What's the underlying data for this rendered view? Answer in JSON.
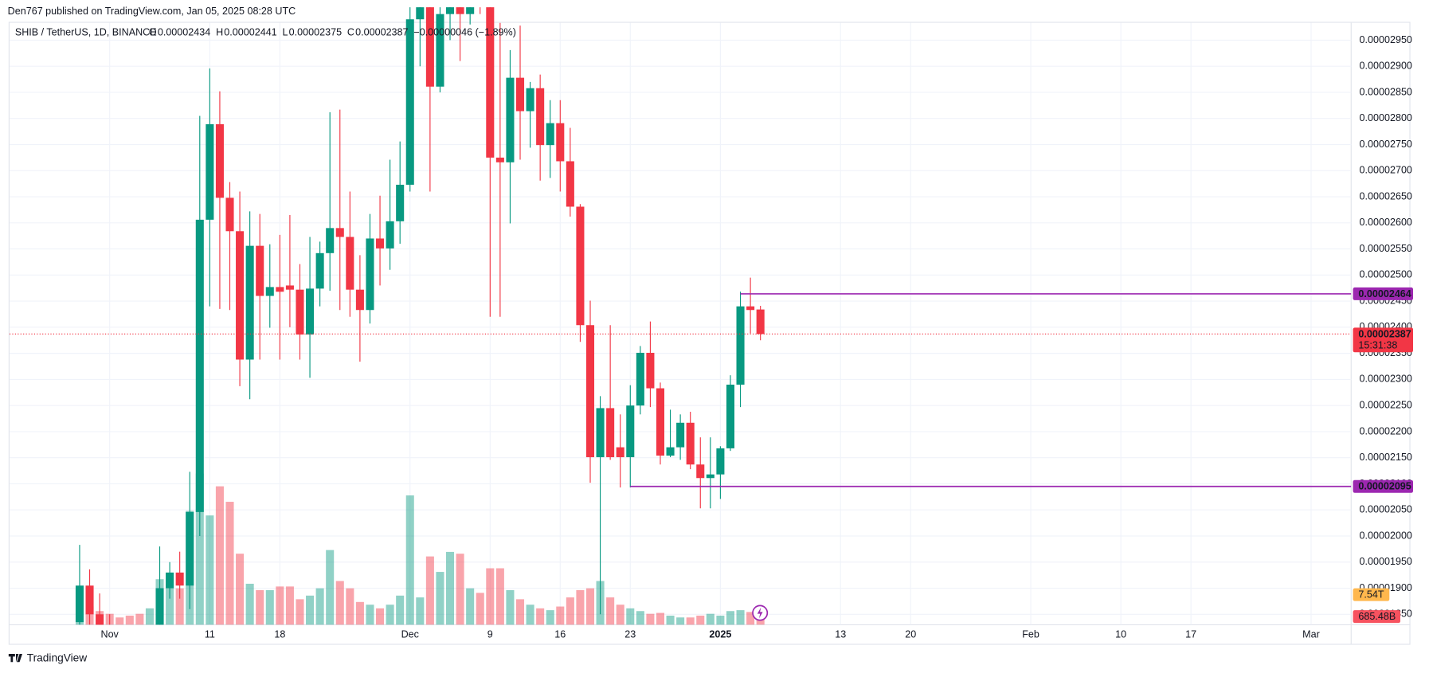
{
  "header": {
    "published": "Den767 published on TradingView.com, Jan 05, 2025 08:28 UTC",
    "symbol": "SHIB / TetherUS, 1D, BINANCE",
    "ohlc_letters": [
      "O",
      "H",
      "L",
      "C"
    ],
    "change": "−0.00000046 (−1.89%)"
  },
  "chart_data": {
    "type": "candlestick",
    "x": [
      "2024-10-29",
      "2024-10-30",
      "2024-10-31",
      "2024-11-01",
      "2024-11-02",
      "2024-11-03",
      "2024-11-04",
      "2024-11-05",
      "2024-11-06",
      "2024-11-07",
      "2024-11-08",
      "2024-11-09",
      "2024-11-10",
      "2024-11-11",
      "2024-11-12",
      "2024-11-13",
      "2024-11-14",
      "2024-11-15",
      "2024-11-16",
      "2024-11-17",
      "2024-11-18",
      "2024-11-19",
      "2024-11-20",
      "2024-11-21",
      "2024-11-22",
      "2024-11-23",
      "2024-11-24",
      "2024-11-25",
      "2024-11-26",
      "2024-11-27",
      "2024-11-28",
      "2024-11-29",
      "2024-11-30",
      "2024-12-01",
      "2024-12-02",
      "2024-12-03",
      "2024-12-04",
      "2024-12-05",
      "2024-12-06",
      "2024-12-07",
      "2024-12-08",
      "2024-12-09",
      "2024-12-10",
      "2024-12-11",
      "2024-12-12",
      "2024-12-13",
      "2024-12-14",
      "2024-12-15",
      "2024-12-16",
      "2024-12-17",
      "2024-12-18",
      "2024-12-19",
      "2024-12-20",
      "2024-12-21",
      "2024-12-22",
      "2024-12-23",
      "2024-12-24",
      "2024-12-25",
      "2024-12-26",
      "2024-12-27",
      "2024-12-28",
      "2024-12-29",
      "2024-12-30",
      "2024-12-31",
      "2025-01-01",
      "2025-01-02",
      "2025-01-03",
      "2025-01-04",
      "2025-01-05"
    ],
    "open": [
      1.835e-05,
      1.905e-05,
      1.85e-05,
      1.81e-05,
      1.8e-05,
      1.78e-05,
      1.74e-05,
      1.72e-05,
      1.78e-05,
      1.9e-05,
      1.93e-05,
      1.905e-05,
      2.046e-05,
      2.606e-05,
      2.789e-05,
      2.648e-05,
      2.584e-05,
      2.338e-05,
      2.556e-05,
      2.46e-05,
      2.477e-05,
      2.48e-05,
      2.472e-05,
      2.386e-05,
      2.474e-05,
      2.542e-05,
      2.59e-05,
      2.573e-05,
      2.472e-05,
      2.433e-05,
      2.57e-05,
      2.551e-05,
      2.603e-05,
      2.673e-05,
      2.99e-05,
      3.04e-05,
      2.861e-05,
      3e-05,
      3.05e-05,
      3e-05,
      3.1e-05,
      3.05e-05,
      2.725e-05,
      2.716e-05,
      2.878e-05,
      2.814e-05,
      2.858e-05,
      2.749e-05,
      2.791e-05,
      2.718e-05,
      2.631e-05,
      2.404e-05,
      2.151e-05,
      2.245e-05,
      2.17e-05,
      2.151e-05,
      2.25e-05,
      2.351e-05,
      2.283e-05,
      2.154e-05,
      2.17e-05,
      2.217e-05,
      2.137e-05,
      2.111e-05,
      2.118e-05,
      2.168e-05,
      2.29e-05,
      2.44e-05,
      2.434e-05
    ],
    "high": [
      1.983e-05,
      1.936e-05,
      1.89e-05,
      1.85e-05,
      1.82e-05,
      1.8e-05,
      1.78e-05,
      1.8e-05,
      1.98e-05,
      1.95e-05,
      1.97e-05,
      2.123e-05,
      2.805e-05,
      2.896e-05,
      2.852e-05,
      2.678e-05,
      2.66e-05,
      2.622e-05,
      2.617e-05,
      2.559e-05,
      2.577e-05,
      2.615e-05,
      2.521e-05,
      2.573e-05,
      2.564e-05,
      2.812e-05,
      2.817e-05,
      2.66e-05,
      2.538e-05,
      2.617e-05,
      2.652e-05,
      2.721e-05,
      2.756e-05,
      3.05e-05,
      3.1e-05,
      3.08e-05,
      3.05e-05,
      3.15e-05,
      3.1e-05,
      3.15e-05,
      3.15e-05,
      3.1e-05,
      2.983e-05,
      2.931e-05,
      2.978e-05,
      2.87e-05,
      2.884e-05,
      2.835e-05,
      2.835e-05,
      2.782e-05,
      2.636e-05,
      2.451e-05,
      2.268e-05,
      2.404e-05,
      2.233e-05,
      2.289e-05,
      2.364e-05,
      2.411e-05,
      2.294e-05,
      2.242e-05,
      2.233e-05,
      2.238e-05,
      2.189e-05,
      2.189e-05,
      2.172e-05,
      2.308e-05,
      2.468e-05,
      2.495e-05,
      2.441e-05
    ],
    "low": [
      1.83e-05,
      1.83e-05,
      1.8e-05,
      1.78e-05,
      1.76e-05,
      1.7e-05,
      1.69e-05,
      1.71e-05,
      1.77e-05,
      1.88e-05,
      1.88e-05,
      1.86e-05,
      2e-05,
      2.44e-05,
      2.435e-05,
      2.433e-05,
      2.287e-05,
      2.262e-05,
      2.338e-05,
      2.399e-05,
      2.338e-05,
      2.4e-05,
      2.338e-05,
      2.303e-05,
      2.44e-05,
      2.47e-05,
      2.433e-05,
      2.42e-05,
      2.334e-05,
      2.407e-05,
      2.48e-05,
      2.51e-05,
      2.56e-05,
      2.66e-05,
      2.9e-05,
      2.66e-05,
      2.85e-05,
      2.95e-05,
      2.91e-05,
      2.98e-05,
      3e-05,
      2.42e-05,
      2.42e-05,
      2.599e-05,
      2.721e-05,
      2.744e-05,
      2.681e-05,
      2.686e-05,
      2.66e-05,
      2.612e-05,
      2.372e-05,
      2.102e-05,
      1.85e-05,
      2.146e-05,
      2.093e-05,
      2.093e-05,
      2.233e-05,
      2.247e-05,
      2.137e-05,
      2.151e-05,
      2.146e-05,
      2.128e-05,
      2.053e-05,
      2.053e-05,
      2.071e-05,
      2.163e-05,
      2.247e-05,
      2.388e-05,
      2.375e-05
    ],
    "close": [
      1.905e-05,
      1.85e-05,
      1.81e-05,
      1.8e-05,
      1.78e-05,
      1.74e-05,
      1.72e-05,
      1.78e-05,
      1.9e-05,
      1.93e-05,
      1.905e-05,
      2.046e-05,
      2.606e-05,
      2.789e-05,
      2.648e-05,
      2.584e-05,
      2.338e-05,
      2.556e-05,
      2.46e-05,
      2.477e-05,
      2.468e-05,
      2.472e-05,
      2.386e-05,
      2.474e-05,
      2.542e-05,
      2.59e-05,
      2.573e-05,
      2.472e-05,
      2.433e-05,
      2.57e-05,
      2.551e-05,
      2.603e-05,
      2.673e-05,
      2.99e-05,
      3.04e-05,
      2.861e-05,
      3e-05,
      3.05e-05,
      3e-05,
      3.1e-05,
      3.05e-05,
      2.725e-05,
      2.716e-05,
      2.878e-05,
      2.814e-05,
      2.858e-05,
      2.749e-05,
      2.791e-05,
      2.718e-05,
      2.631e-05,
      2.404e-05,
      2.151e-05,
      2.245e-05,
      2.151e-05,
      2.151e-05,
      2.25e-05,
      2.351e-05,
      2.283e-05,
      2.154e-05,
      2.17e-05,
      2.217e-05,
      2.137e-05,
      2.111e-05,
      2.118e-05,
      2.168e-05,
      2.29e-05,
      2.44e-05,
      2.433e-05,
      2.387e-05
    ],
    "volume": [
      3440000000000.0,
      1720000000000.0,
      1290000000000.0,
      1032000000000.0,
      688000000000.0,
      860000000000.0,
      1032000000000.0,
      1548000000000.0,
      4300000000000.0,
      3870000000000.0,
      3440000000000.0,
      10750000000000.0,
      14276000000000.0,
      10320000000000.0,
      13072000000000.0,
      11610000000000.0,
      6708000000000.0,
      3870000000000.0,
      3268000000000.0,
      3268000000000.0,
      3612000000000.0,
      3612000000000.0,
      2408000000000.0,
      2752000000000.0,
      3440000000000.0,
      7052000000000.0,
      4128000000000.0,
      3440000000000.0,
      2150000000000.0,
      1892000000000.0,
      1548000000000.0,
      1892000000000.0,
      2752000000000.0,
      12212000000000.0,
      2580000000000.0,
      6450000000000.0,
      4988000000000.0,
      6880000000000.0,
      6708000000000.0,
      3440000000000.0,
      3010000000000.0,
      5332000000000.0,
      5332000000000.0,
      3268000000000.0,
      2408000000000.0,
      1892000000000.0,
      1548000000000.0,
      1376000000000.0,
      1720000000000.0,
      2580000000000.0,
      3268000000000.0,
      3440000000000.0,
      4128000000000.0,
      2580000000000.0,
      1892000000000.0,
      1548000000000.0,
      1290000000000.0,
      1032000000000.0,
      1118000000000.0,
      860000000000.0,
      688000000000.0,
      688000000000.0,
      860000000000.0,
      1032000000000.0,
      860000000000.0,
      1290000000000.0,
      1376000000000.0,
      1204000000000.0,
      685480000000
    ],
    "last_volume_label": "685.48B",
    "volume_ma": {
      "value": 7540000000000,
      "label": "7.54T"
    },
    "colors": {
      "up": "#089981",
      "down": "#f23645",
      "level": "#9c27b0"
    },
    "countdown": "15:31:38",
    "levels": [
      {
        "value": 2.464e-05,
        "start": "2025-01-03"
      },
      {
        "value": 2.095e-05,
        "start": "2024-12-23"
      }
    ],
    "ylim": [
      1.83e-05,
      3.013e-05
    ],
    "yticks": [
      {
        "value": 1.85e-05,
        "label": "0.00001850"
      },
      {
        "value": 1.9e-05,
        "label": "0.00001900"
      },
      {
        "value": 1.95e-05,
        "label": "0.00001950"
      },
      {
        "value": 2e-05,
        "label": "0.00002000"
      },
      {
        "value": 2.05e-05,
        "label": "0.00002050"
      },
      {
        "value": 2.1e-05,
        "label": "0.00002100"
      },
      {
        "value": 2.15e-05,
        "label": "0.00002150"
      },
      {
        "value": 2.2e-05,
        "label": "0.00002200"
      },
      {
        "value": 2.25e-05,
        "label": "0.00002250"
      },
      {
        "value": 2.3e-05,
        "label": "0.00002300"
      },
      {
        "value": 2.35e-05,
        "label": "0.00002350"
      },
      {
        "value": 2.4e-05,
        "label": "0.00002400"
      },
      {
        "value": 2.45e-05,
        "label": "0.00002450"
      },
      {
        "value": 2.5e-05,
        "label": "0.00002500"
      },
      {
        "value": 2.55e-05,
        "label": "0.00002550"
      },
      {
        "value": 2.6e-05,
        "label": "0.00002600"
      },
      {
        "value": 2.65e-05,
        "label": "0.00002650"
      },
      {
        "value": 2.7e-05,
        "label": "0.00002700"
      },
      {
        "value": 2.75e-05,
        "label": "0.00002750"
      },
      {
        "value": 2.8e-05,
        "label": "0.00002800"
      },
      {
        "value": 2.85e-05,
        "label": "0.00002850"
      },
      {
        "value": 2.9e-05,
        "label": "0.00002900"
      },
      {
        "value": 2.95e-05,
        "label": "0.00002950"
      }
    ],
    "xlim": [
      "2024-10-22",
      "2025-03-05"
    ],
    "xticks": [
      {
        "value": "2024-11-01",
        "label": "Nov"
      },
      {
        "value": "2024-11-11",
        "label": "11"
      },
      {
        "value": "2024-11-18",
        "label": "18"
      },
      {
        "value": "2024-12-01",
        "label": "Dec"
      },
      {
        "value": "2024-12-09",
        "label": "9"
      },
      {
        "value": "2024-12-16",
        "label": "16"
      },
      {
        "value": "2024-12-23",
        "label": "23"
      },
      {
        "value": "2025-01-01",
        "label": "2025"
      },
      {
        "value": "2025-01-13",
        "label": "13"
      },
      {
        "value": "2025-01-20",
        "label": "20"
      },
      {
        "value": "2025-02-01",
        "label": "Feb"
      },
      {
        "value": "2025-02-10",
        "label": "10"
      },
      {
        "value": "2025-02-17",
        "label": "17"
      },
      {
        "value": "2025-03-01",
        "label": "Mar"
      }
    ],
    "grid": true
  },
  "footer": {
    "brand": "TradingView"
  }
}
